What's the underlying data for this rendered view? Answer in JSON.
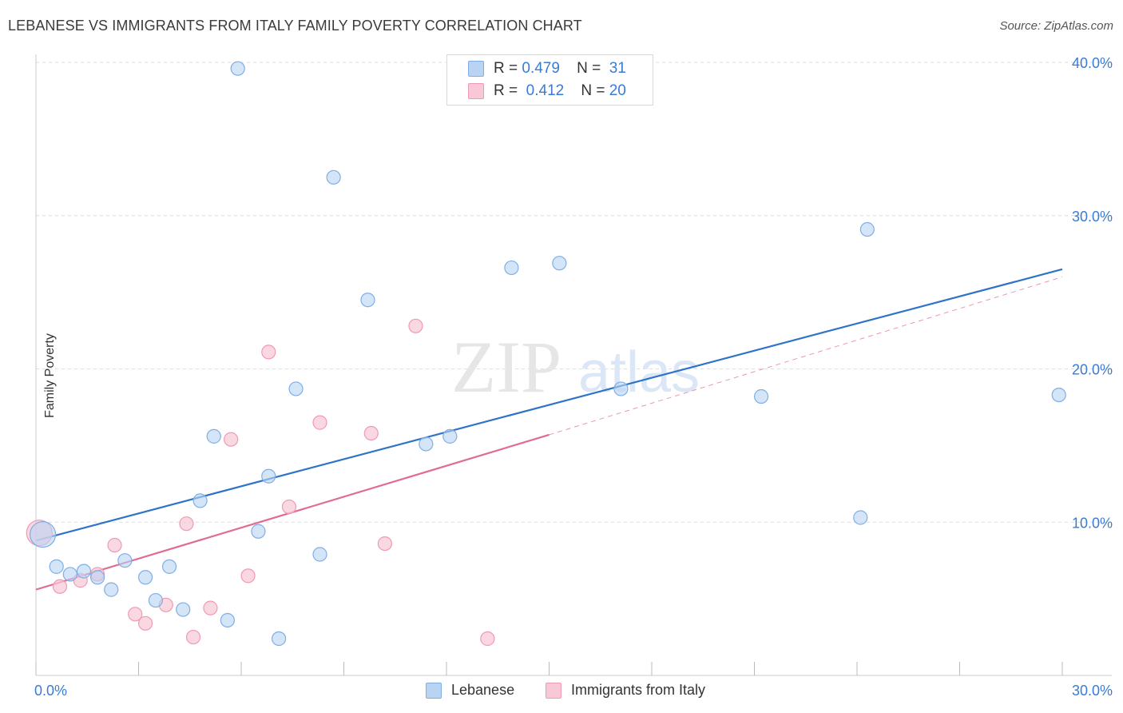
{
  "title": "LEBANESE VS IMMIGRANTS FROM ITALY FAMILY POVERTY CORRELATION CHART",
  "source": "Source: ZipAtlas.com",
  "watermark": {
    "zip": "ZIP",
    "atlas": "atlas"
  },
  "legend": {
    "series1": {
      "r_label": "R =",
      "r_value": "0.479",
      "n_label": "N =",
      "n_value": "31"
    },
    "series2": {
      "r_label": "R =",
      "r_value": "0.412",
      "n_label": "N =",
      "n_value": "20"
    }
  },
  "bottom_legend": {
    "series1": "Lebanese",
    "series2": "Immigrants from Italy"
  },
  "colors": {
    "blue_fill": "#b9d3f3",
    "blue_stroke": "#7faee6",
    "blue_line": "#2f73c9",
    "pink_fill": "#f8c8d6",
    "pink_stroke": "#ee9ab4",
    "pink_line": "#e06b93",
    "axis_label": "#3a7bd5",
    "grid": "#dddddd"
  },
  "chart_data": {
    "type": "scatter",
    "title": "LEBANESE VS IMMIGRANTS FROM ITALY FAMILY POVERTY CORRELATION CHART",
    "xlabel": "",
    "ylabel": "Family Poverty",
    "xlim": [
      0,
      30
    ],
    "ylim": [
      0,
      40
    ],
    "x_tick_labels": [
      "0.0%",
      "30.0%"
    ],
    "y_tick_labels": [
      "10.0%",
      "20.0%",
      "30.0%",
      "40.0%"
    ],
    "y_ticks": [
      10,
      20,
      30,
      40
    ],
    "series": [
      {
        "name": "Lebanese",
        "r": 0.479,
        "n": 31,
        "trend": {
          "x0": 0,
          "y0": 8.8,
          "x1": 30,
          "y1": 26.5
        },
        "points": [
          {
            "x": 0.2,
            "y": 9.2,
            "big": true
          },
          {
            "x": 0.6,
            "y": 7.1
          },
          {
            "x": 1.0,
            "y": 6.6
          },
          {
            "x": 1.4,
            "y": 6.8
          },
          {
            "x": 1.8,
            "y": 6.4
          },
          {
            "x": 2.2,
            "y": 5.6
          },
          {
            "x": 2.6,
            "y": 7.5
          },
          {
            "x": 3.2,
            "y": 6.4
          },
          {
            "x": 3.5,
            "y": 4.9
          },
          {
            "x": 3.9,
            "y": 7.1
          },
          {
            "x": 4.3,
            "y": 4.3
          },
          {
            "x": 4.8,
            "y": 11.4
          },
          {
            "x": 5.2,
            "y": 15.6
          },
          {
            "x": 5.6,
            "y": 3.6
          },
          {
            "x": 5.9,
            "y": 39.6
          },
          {
            "x": 6.5,
            "y": 9.4
          },
          {
            "x": 6.8,
            "y": 13.0
          },
          {
            "x": 7.1,
            "y": 2.4
          },
          {
            "x": 7.6,
            "y": 18.7
          },
          {
            "x": 8.3,
            "y": 7.9
          },
          {
            "x": 8.7,
            "y": 32.5
          },
          {
            "x": 9.7,
            "y": 24.5
          },
          {
            "x": 11.4,
            "y": 15.1
          },
          {
            "x": 12.1,
            "y": 15.6
          },
          {
            "x": 13.9,
            "y": 26.6
          },
          {
            "x": 15.3,
            "y": 26.9
          },
          {
            "x": 17.1,
            "y": 18.7
          },
          {
            "x": 21.2,
            "y": 18.2
          },
          {
            "x": 24.1,
            "y": 10.3
          },
          {
            "x": 24.3,
            "y": 29.1
          },
          {
            "x": 29.9,
            "y": 18.3
          }
        ]
      },
      {
        "name": "Immigrants from Italy",
        "r": 0.412,
        "n": 20,
        "trend": {
          "x0": 0,
          "y0": 5.6,
          "x1": 15.0,
          "y1": 15.7,
          "dash_x1": 30,
          "dash_y1": 26.0
        },
        "points": [
          {
            "x": 0.1,
            "y": 9.3,
            "big": true
          },
          {
            "x": 0.7,
            "y": 5.8
          },
          {
            "x": 1.3,
            "y": 6.2
          },
          {
            "x": 1.8,
            "y": 6.6
          },
          {
            "x": 2.3,
            "y": 8.5
          },
          {
            "x": 2.9,
            "y": 4.0
          },
          {
            "x": 3.2,
            "y": 3.4
          },
          {
            "x": 3.8,
            "y": 4.6
          },
          {
            "x": 4.4,
            "y": 9.9
          },
          {
            "x": 4.6,
            "y": 2.5
          },
          {
            "x": 5.1,
            "y": 4.4
          },
          {
            "x": 5.7,
            "y": 15.4
          },
          {
            "x": 6.2,
            "y": 6.5
          },
          {
            "x": 6.8,
            "y": 21.1
          },
          {
            "x": 7.4,
            "y": 11.0
          },
          {
            "x": 8.3,
            "y": 16.5
          },
          {
            "x": 9.8,
            "y": 15.8
          },
          {
            "x": 10.2,
            "y": 8.6
          },
          {
            "x": 11.1,
            "y": 22.8
          },
          {
            "x": 13.2,
            "y": 2.4
          }
        ]
      }
    ]
  }
}
